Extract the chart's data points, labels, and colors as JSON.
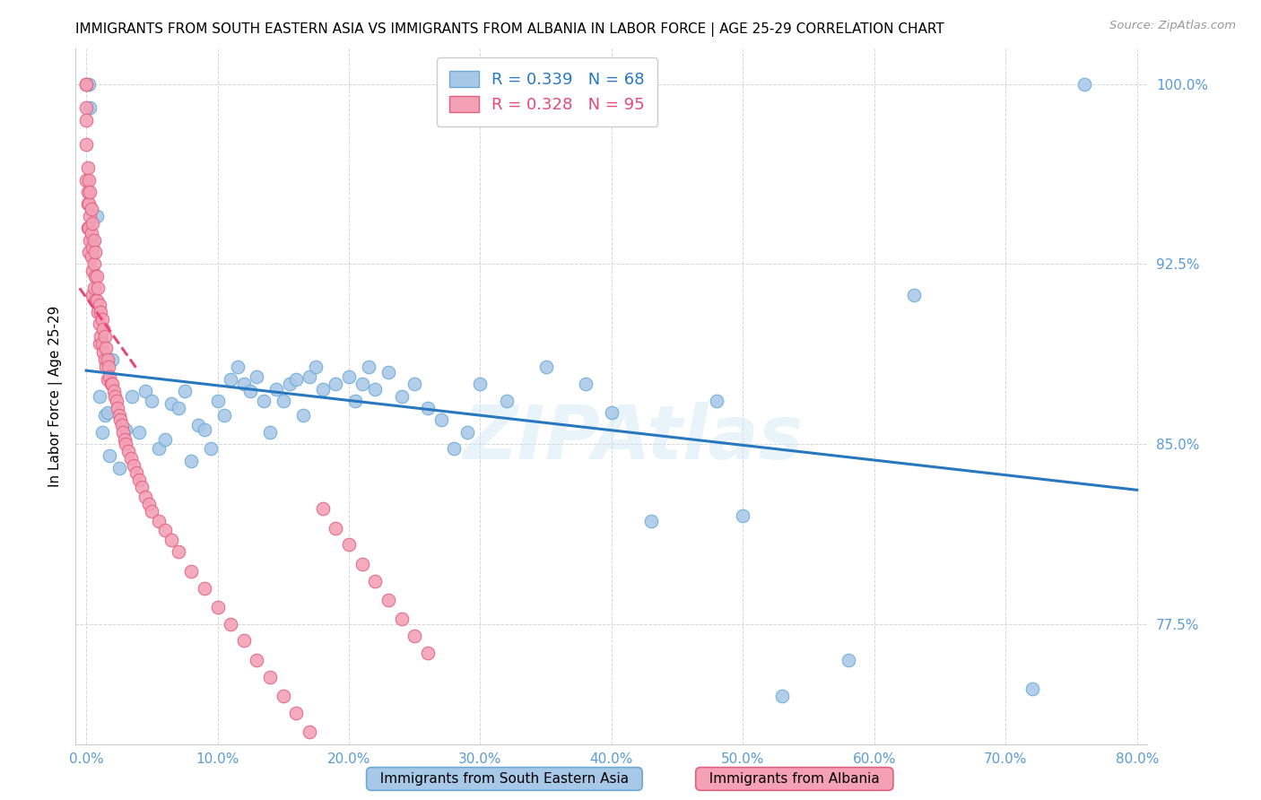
{
  "title": "IMMIGRANTS FROM SOUTH EASTERN ASIA VS IMMIGRANTS FROM ALBANIA IN LABOR FORCE | AGE 25-29 CORRELATION CHART",
  "source": "Source: ZipAtlas.com",
  "ylabel": "In Labor Force | Age 25-29",
  "xmin": 0.0,
  "xmax": 0.8,
  "ymin": 0.725,
  "ymax": 1.015,
  "yticks": [
    0.775,
    0.85,
    0.925,
    1.0
  ],
  "ytick_labels": [
    "77.5%",
    "85.0%",
    "92.5%",
    "100.0%"
  ],
  "xticks": [
    0.0,
    0.1,
    0.2,
    0.3,
    0.4,
    0.5,
    0.6,
    0.7,
    0.8
  ],
  "xtick_labels": [
    "0.0%",
    "10.0%",
    "20.0%",
    "30.0%",
    "40.0%",
    "50.0%",
    "60.0%",
    "70.0%",
    "80.0%"
  ],
  "blue_R": 0.339,
  "blue_N": 68,
  "pink_R": 0.328,
  "pink_N": 95,
  "blue_label": "Immigrants from South Eastern Asia",
  "pink_label": "Immigrants from Albania",
  "tick_color": "#5b9bd5",
  "grid_color": "#cccccc",
  "watermark": "ZIPAtlas",
  "blue_scatter_color": "#a8c8e8",
  "blue_scatter_edge": "#6aaad4",
  "pink_scatter_color": "#f4a0b5",
  "pink_scatter_edge": "#e06080",
  "blue_line_color": "#2878c0",
  "pink_line_color": "#e84878",
  "blue_scatter_x": [
    0.002,
    0.003,
    0.005,
    0.008,
    0.01,
    0.012,
    0.014,
    0.016,
    0.018,
    0.02,
    0.025,
    0.03,
    0.035,
    0.04,
    0.045,
    0.05,
    0.055,
    0.06,
    0.065,
    0.07,
    0.075,
    0.08,
    0.085,
    0.09,
    0.095,
    0.1,
    0.105,
    0.11,
    0.115,
    0.12,
    0.125,
    0.13,
    0.135,
    0.14,
    0.145,
    0.15,
    0.155,
    0.16,
    0.165,
    0.17,
    0.175,
    0.18,
    0.19,
    0.2,
    0.205,
    0.21,
    0.215,
    0.22,
    0.23,
    0.24,
    0.25,
    0.26,
    0.27,
    0.28,
    0.29,
    0.3,
    0.32,
    0.35,
    0.38,
    0.4,
    0.43,
    0.48,
    0.5,
    0.53,
    0.58,
    0.63,
    0.72,
    0.76
  ],
  "blue_scatter_y": [
    1.0,
    0.99,
    0.935,
    0.945,
    0.87,
    0.855,
    0.862,
    0.863,
    0.845,
    0.885,
    0.84,
    0.856,
    0.87,
    0.855,
    0.872,
    0.868,
    0.848,
    0.852,
    0.867,
    0.865,
    0.872,
    0.843,
    0.858,
    0.856,
    0.848,
    0.868,
    0.862,
    0.877,
    0.882,
    0.875,
    0.872,
    0.878,
    0.868,
    0.855,
    0.873,
    0.868,
    0.875,
    0.877,
    0.862,
    0.878,
    0.882,
    0.873,
    0.875,
    0.878,
    0.868,
    0.875,
    0.882,
    0.873,
    0.88,
    0.87,
    0.875,
    0.865,
    0.86,
    0.848,
    0.855,
    0.875,
    0.868,
    0.882,
    0.875,
    0.863,
    0.818,
    0.868,
    0.82,
    0.745,
    0.76,
    0.912,
    0.748,
    1.0
  ],
  "pink_scatter_x": [
    0.0,
    0.0,
    0.0,
    0.0,
    0.0,
    0.0,
    0.001,
    0.001,
    0.001,
    0.001,
    0.002,
    0.002,
    0.002,
    0.002,
    0.003,
    0.003,
    0.003,
    0.004,
    0.004,
    0.004,
    0.005,
    0.005,
    0.005,
    0.005,
    0.006,
    0.006,
    0.006,
    0.007,
    0.007,
    0.007,
    0.008,
    0.008,
    0.009,
    0.009,
    0.01,
    0.01,
    0.01,
    0.011,
    0.011,
    0.012,
    0.012,
    0.013,
    0.013,
    0.014,
    0.014,
    0.015,
    0.015,
    0.016,
    0.016,
    0.017,
    0.018,
    0.019,
    0.02,
    0.021,
    0.022,
    0.023,
    0.024,
    0.025,
    0.026,
    0.027,
    0.028,
    0.029,
    0.03,
    0.032,
    0.034,
    0.036,
    0.038,
    0.04,
    0.042,
    0.045,
    0.048,
    0.05,
    0.055,
    0.06,
    0.065,
    0.07,
    0.08,
    0.09,
    0.1,
    0.11,
    0.12,
    0.13,
    0.14,
    0.15,
    0.16,
    0.17,
    0.18,
    0.19,
    0.2,
    0.21,
    0.22,
    0.23,
    0.24,
    0.25,
    0.26
  ],
  "pink_scatter_y": [
    1.0,
    1.0,
    0.99,
    0.985,
    0.975,
    0.96,
    0.965,
    0.955,
    0.95,
    0.94,
    0.96,
    0.95,
    0.94,
    0.93,
    0.955,
    0.945,
    0.935,
    0.948,
    0.938,
    0.928,
    0.942,
    0.932,
    0.922,
    0.912,
    0.935,
    0.925,
    0.915,
    0.93,
    0.92,
    0.91,
    0.92,
    0.91,
    0.915,
    0.905,
    0.908,
    0.9,
    0.892,
    0.905,
    0.895,
    0.902,
    0.892,
    0.898,
    0.888,
    0.895,
    0.885,
    0.89,
    0.882,
    0.885,
    0.877,
    0.882,
    0.878,
    0.875,
    0.875,
    0.872,
    0.87,
    0.868,
    0.865,
    0.862,
    0.86,
    0.858,
    0.855,
    0.852,
    0.85,
    0.847,
    0.844,
    0.841,
    0.838,
    0.835,
    0.832,
    0.828,
    0.825,
    0.822,
    0.818,
    0.814,
    0.81,
    0.805,
    0.797,
    0.79,
    0.782,
    0.775,
    0.768,
    0.76,
    0.753,
    0.745,
    0.738,
    0.73,
    0.823,
    0.815,
    0.808,
    0.8,
    0.793,
    0.785,
    0.777,
    0.77,
    0.763
  ]
}
